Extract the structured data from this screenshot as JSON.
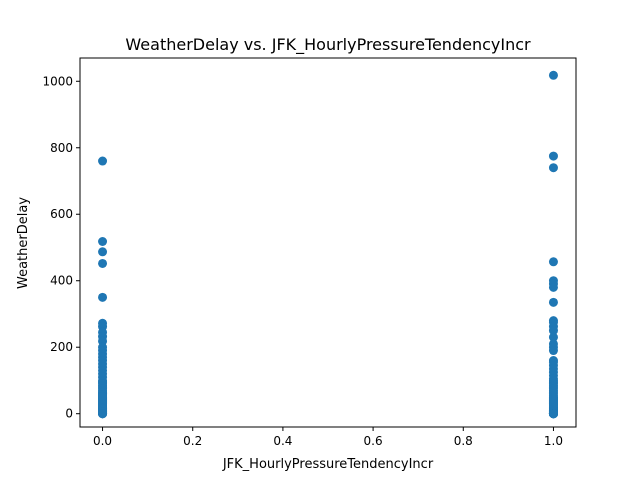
{
  "chart_data": {
    "type": "scatter",
    "title": "WeatherDelay vs. JFK_HourlyPressureTendencyIncr",
    "xlabel": "JFK_HourlyPressureTendencyIncr",
    "ylabel": "WeatherDelay",
    "xlim": [
      -0.05,
      1.05
    ],
    "ylim": [
      -40,
      1070
    ],
    "xticks": [
      "0.0",
      "0.2",
      "0.4",
      "0.6",
      "0.8",
      "1.0"
    ],
    "yticks": [
      "0",
      "200",
      "400",
      "600",
      "800",
      "1000"
    ],
    "grid": false,
    "legend": "none",
    "marker_color": "#1f77b4",
    "series": [
      {
        "x": [
          0,
          0,
          0,
          0,
          0,
          0,
          0,
          0,
          0,
          0,
          0,
          0,
          0,
          0,
          0,
          0,
          0,
          0,
          0,
          0,
          0,
          0,
          0,
          0,
          0,
          0,
          0,
          0,
          0,
          0,
          0,
          0,
          0,
          0,
          0,
          0,
          0,
          0,
          0,
          0,
          0,
          0,
          0,
          0,
          0,
          0,
          0,
          0,
          0,
          0,
          0,
          0,
          0,
          0,
          0,
          0,
          0,
          0,
          0,
          0,
          0,
          0,
          0,
          0,
          0,
          0,
          1,
          1,
          1,
          1,
          1,
          1,
          1,
          1,
          1,
          1,
          1,
          1,
          1,
          1,
          1,
          1,
          1,
          1,
          1,
          1,
          1,
          1,
          1,
          1,
          1,
          1,
          1,
          1,
          1,
          1,
          1,
          1,
          1,
          1,
          1,
          1,
          1,
          1,
          1,
          1,
          1,
          1,
          1,
          1,
          1,
          1,
          1,
          1,
          1,
          1,
          1,
          1,
          1,
          1,
          1,
          1,
          1,
          1,
          1,
          1,
          1,
          1,
          1,
          1,
          1,
          1,
          1,
          1,
          1,
          1,
          1,
          1,
          1
        ],
        "y": [
          760,
          518,
          487,
          452,
          350,
          272,
          262,
          245,
          232,
          218,
          200,
          190,
          180,
          170,
          160,
          150,
          140,
          130,
          120,
          110,
          100,
          95,
          90,
          85,
          80,
          75,
          70,
          65,
          60,
          55,
          50,
          47,
          44,
          41,
          38,
          35,
          32,
          29,
          26,
          23,
          20,
          18,
          16,
          14,
          12,
          10,
          9,
          8,
          7,
          6,
          5,
          4,
          3,
          2,
          1,
          0,
          0,
          0,
          62,
          57,
          52,
          15,
          11,
          6,
          1,
          0,
          1018,
          775,
          740,
          457,
          400,
          390,
          380,
          335,
          280,
          275,
          262,
          250,
          230,
          210,
          200,
          190,
          160,
          155,
          145,
          135,
          125,
          115,
          105,
          100,
          95,
          90,
          85,
          80,
          75,
          70,
          65,
          60,
          55,
          50,
          47,
          44,
          41,
          38,
          35,
          32,
          29,
          26,
          23,
          20,
          18,
          16,
          14,
          12,
          10,
          9,
          8,
          7,
          6,
          5,
          4,
          3,
          2,
          1,
          0,
          0,
          0,
          0,
          0,
          0,
          0,
          0,
          0,
          0,
          0,
          0,
          0,
          0,
          0
        ]
      }
    ]
  }
}
